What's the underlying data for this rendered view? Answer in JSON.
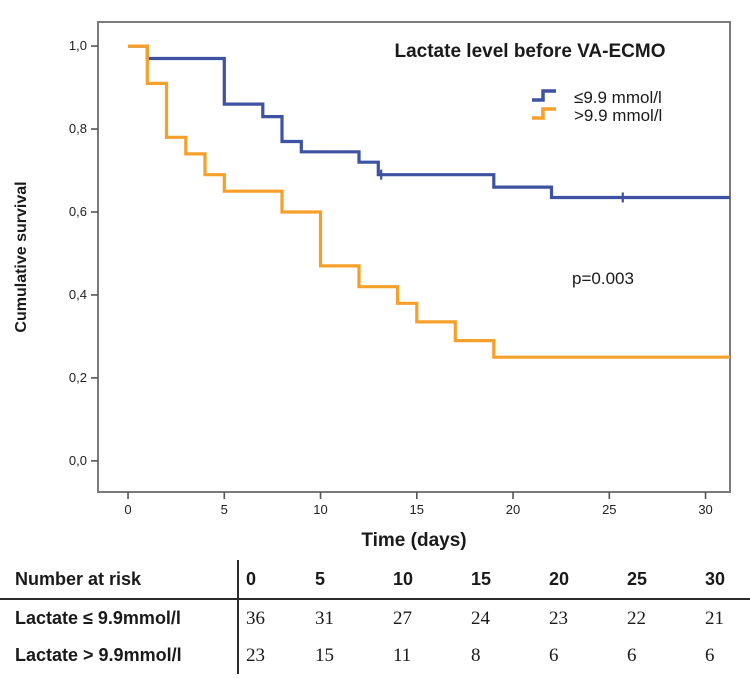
{
  "chart_data": {
    "type": "line",
    "variant": "kaplan_meier_step_plot",
    "title": "Lactate level before VA-ECMO",
    "xlabel": "Time (days)",
    "ylabel": "Cumulative survival",
    "xlim": [
      -1.56,
      31.27
    ],
    "ylim": [
      -0.075,
      1.058
    ],
    "x_ticks": [
      0,
      5,
      10,
      15,
      20,
      25,
      30
    ],
    "y_ticks": [
      0.0,
      0.2,
      0.4,
      0.6,
      0.8,
      1.0
    ],
    "y_tick_labels": [
      "0,0",
      "0,2",
      "0,4",
      "0,6",
      "0,8",
      "1,0"
    ],
    "grid": false,
    "legend_position": "top-right-inside",
    "annotation": {
      "text": "p=0.003",
      "x": 24.7,
      "y": 0.44
    },
    "series": [
      {
        "name": "≤9.9 mmol/l",
        "color": "#3D52A1",
        "steps": [
          [
            0,
            1.0
          ],
          [
            1,
            0.97
          ],
          [
            5,
            0.86
          ],
          [
            7,
            0.83
          ],
          [
            8,
            0.77
          ],
          [
            9,
            0.745
          ],
          [
            12,
            0.72
          ],
          [
            13,
            0.69
          ],
          [
            19,
            0.66
          ],
          [
            22,
            0.635
          ]
        ],
        "end_time": 31.27,
        "censor_marks": [
          [
            13.15,
            0.69
          ],
          [
            25.7,
            0.635
          ]
        ]
      },
      {
        "name": ">9.9 mmol/l",
        "color": "#F5A02A",
        "steps": [
          [
            0,
            1.0
          ],
          [
            1,
            0.91
          ],
          [
            2,
            0.78
          ],
          [
            3,
            0.74
          ],
          [
            4,
            0.69
          ],
          [
            5,
            0.65
          ],
          [
            8,
            0.6
          ],
          [
            10,
            0.47
          ],
          [
            12,
            0.42
          ],
          [
            14,
            0.38
          ],
          [
            15,
            0.335
          ],
          [
            17,
            0.29
          ],
          [
            19,
            0.25
          ]
        ],
        "end_time": 31.27,
        "censor_marks": []
      }
    ]
  },
  "risk_table": {
    "header_label": "Number at risk",
    "time_points": [
      "0",
      "5",
      "10",
      "15",
      "20",
      "25",
      "30"
    ],
    "rows": [
      {
        "label": "Lactate ≤ 9.9mmol/l",
        "values": [
          "36",
          "31",
          "27",
          "24",
          "23",
          "22",
          "21"
        ]
      },
      {
        "label": "Lactate > 9.9mmol/l",
        "values": [
          "23",
          "15",
          "11",
          "8",
          "6",
          "6",
          "6"
        ]
      }
    ]
  },
  "colors": {
    "series_le": "#3D52A1",
    "series_gt": "#F5A02A",
    "plot_border": "#7a7a7a",
    "text": "#1a1a1a"
  }
}
